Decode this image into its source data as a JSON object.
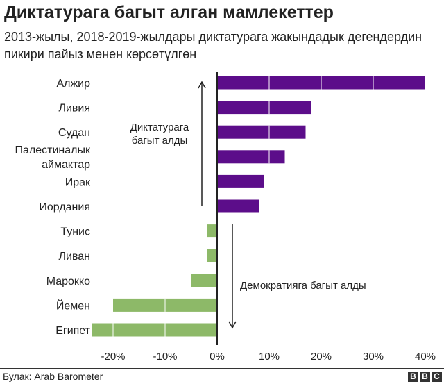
{
  "chart_data": {
    "type": "bar",
    "orientation": "horizontal",
    "title": "Диктатурага багыт алган мамлекеттер",
    "subtitle": "2013-жылы, 2018-2019-жылдары диктатурага жакындадык дегендердин пикири пайыз менен көрсөтүлгөн",
    "categories": [
      "Алжир",
      "Ливия",
      "Судан",
      "Палестиналык аймактар",
      "Ирак",
      "Иордания",
      "Тунис",
      "Ливан",
      "Марокко",
      "Йемен",
      "Египет"
    ],
    "values": [
      40,
      18,
      17,
      13,
      9,
      8,
      -2,
      -2,
      -5,
      -20,
      -24
    ],
    "xlim": [
      -24,
      40
    ],
    "ticks": [
      -20,
      -10,
      0,
      10,
      20,
      30,
      40
    ],
    "tick_labels": [
      "-20%",
      "-10%",
      "0%",
      "10%",
      "20%",
      "30%",
      "40%"
    ],
    "annotations": {
      "up": "Диктатурага багыт алды",
      "down": "Демократияга багыт алды"
    },
    "colors": {
      "positive": "#5c0d8a",
      "negative": "#8db968",
      "axis": "#222222"
    },
    "grid": false
  },
  "source": "Булак: Arab Barometer",
  "logo": [
    "B",
    "B",
    "C"
  ]
}
